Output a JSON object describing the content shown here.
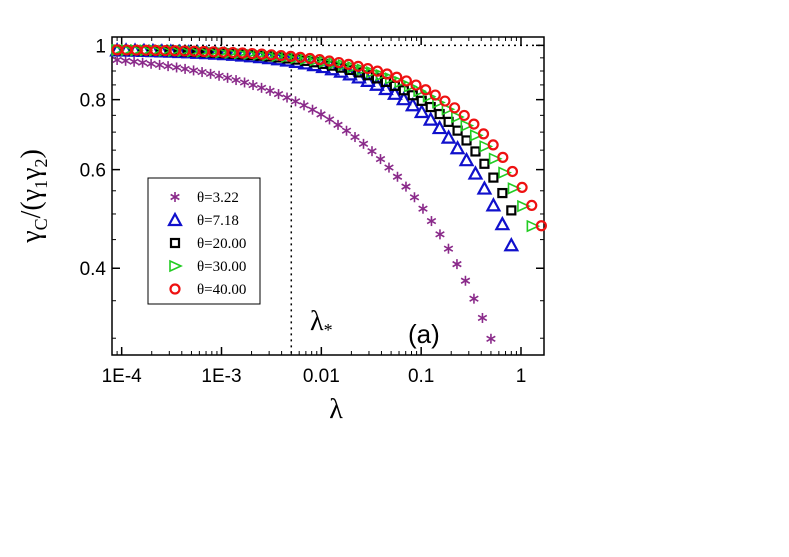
{
  "chart_data": {
    "type": "scatter",
    "title": "",
    "xlabel": "λ",
    "ylabel_parts": {
      "gamma": "γ",
      "subC": "C",
      "open": "/(",
      "gamma1": "γ",
      "sub1": "1",
      "gamma2": "γ",
      "sub2": "2",
      "close": ")"
    },
    "xscale": "log",
    "yscale": "log",
    "xlim": [
      8e-05,
      1.7
    ],
    "ylim": [
      0.28,
      1.035
    ],
    "xticks": [
      {
        "value": 0.0001,
        "label": "1E-4"
      },
      {
        "value": 0.001,
        "label": "1E-3"
      },
      {
        "value": 0.01,
        "label": "0.01"
      },
      {
        "value": 0.1,
        "label": "0.1"
      },
      {
        "value": 1,
        "label": "1"
      }
    ],
    "yticks": [
      {
        "value": 0.4,
        "label": "0.4"
      },
      {
        "value": 0.6,
        "label": "0.6"
      },
      {
        "value": 0.8,
        "label": "0.8"
      },
      {
        "value": 1,
        "label": "1"
      }
    ],
    "reference_lines": {
      "horizontal_y": 1.0,
      "vertical_x": 0.005,
      "vertical_label": {
        "main": "λ",
        "sub": "*"
      }
    },
    "panel_label": "(a)",
    "legend_position": "center-left",
    "series": [
      {
        "name": "θ=3.22",
        "marker": "asterisk",
        "color": "#8a2a8a",
        "x0": 9e-05,
        "x1": 0.5,
        "logC": 0.0008,
        "pow": 0.5
      },
      {
        "name": "θ=7.18",
        "marker": "triangle-up",
        "color": "#1010cc",
        "x0": 9e-05,
        "x1": 0.8,
        "logC": 0.152,
        "pow": 0.5
      },
      {
        "name": "θ=20.00",
        "marker": "square",
        "color": "#000000",
        "x0": 9e-05,
        "x1": 0.8,
        "logC": 0.125,
        "pow": 0.5
      },
      {
        "name": "θ=30.00",
        "marker": "triangle-right",
        "color": "#22cc22",
        "x0": 9e-05,
        "x1": 1.3,
        "logC": 0.105,
        "pow": 0.5
      },
      {
        "name": "θ=40.00",
        "marker": "circle",
        "color": "#ee1111",
        "x0": 9e-05,
        "x1": 1.6,
        "logC": 0.0935,
        "pow": 0.5
      }
    ]
  }
}
